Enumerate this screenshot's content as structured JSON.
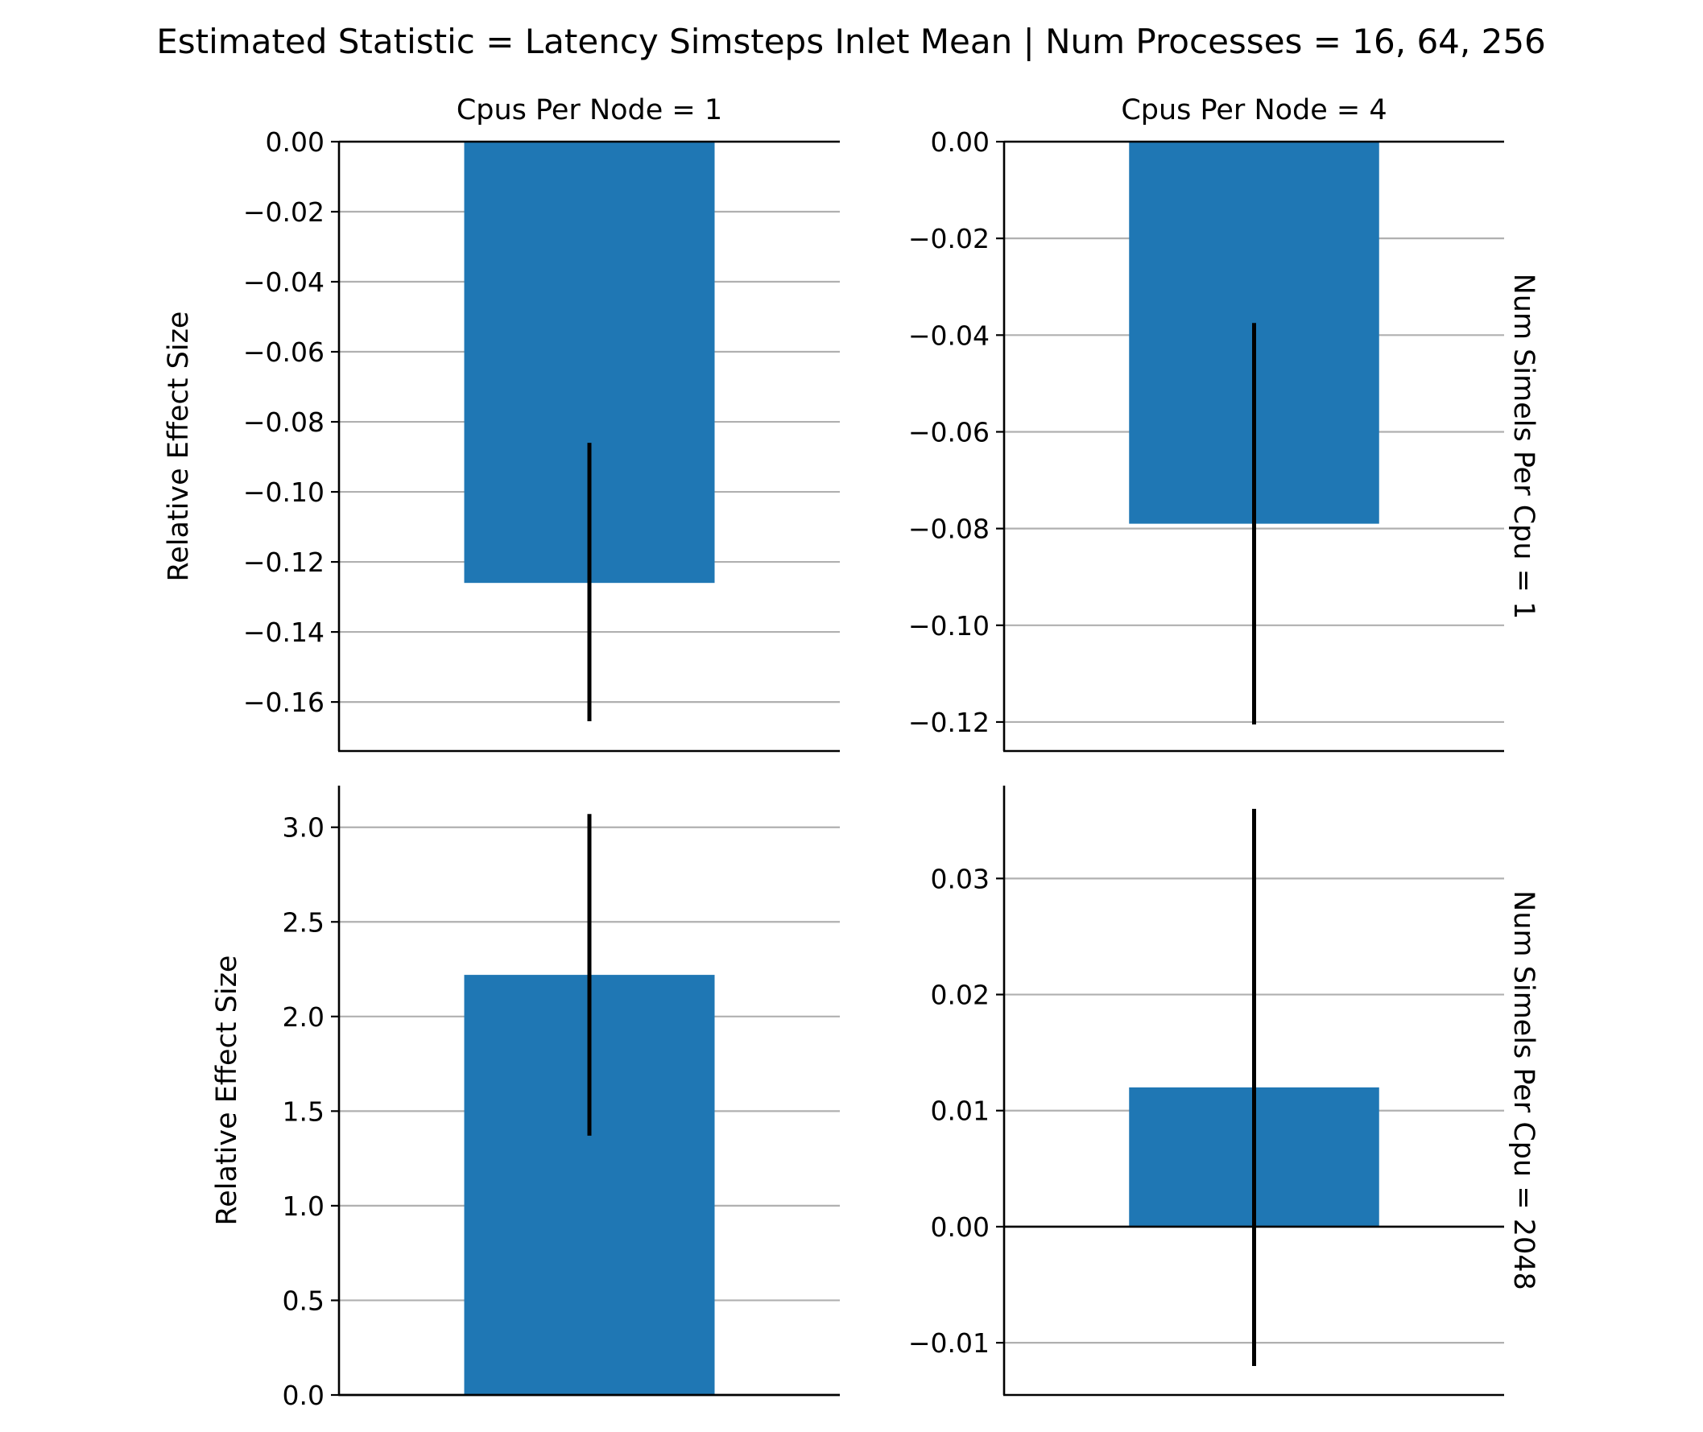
{
  "figure": {
    "suptitle": "Estimated Statistic = Latency Simsteps Inlet Mean | Num Processes = 16, 64, 256"
  },
  "colors": {
    "bar": "#1f77b4",
    "errorbar": "#000000",
    "grid": "#b0b0b0",
    "axis": "#000000"
  },
  "chart_data": [
    {
      "type": "bar",
      "panel": "top-left",
      "col_title": "Cpus Per Node = 1",
      "row_title": "",
      "ylabel": "Relative Effect Size",
      "categories": [
        ""
      ],
      "values": [
        -0.126
      ],
      "error_low": [
        -0.1655
      ],
      "error_high": [
        -0.086
      ],
      "ylim": [
        -0.174,
        0.0
      ],
      "yticks": [
        0.0,
        -0.02,
        -0.04,
        -0.06,
        -0.08,
        -0.1,
        -0.12,
        -0.14,
        -0.16
      ],
      "ytick_labels": [
        "0.00",
        "−0.02",
        "−0.04",
        "−0.06",
        "−0.08",
        "−0.10",
        "−0.12",
        "−0.14",
        "−0.16"
      ],
      "grid": "y"
    },
    {
      "type": "bar",
      "panel": "top-right",
      "col_title": "Cpus Per Node = 4",
      "row_title": "Num Simels Per Cpu = 1",
      "ylabel": "",
      "categories": [
        ""
      ],
      "values": [
        -0.079
      ],
      "error_low": [
        -0.1205
      ],
      "error_high": [
        -0.0375
      ],
      "ylim": [
        -0.126,
        0.0
      ],
      "yticks": [
        0.0,
        -0.02,
        -0.04,
        -0.06,
        -0.08,
        -0.1,
        -0.12
      ],
      "ytick_labels": [
        "0.00",
        "−0.02",
        "−0.04",
        "−0.06",
        "−0.08",
        "−0.10",
        "−0.12"
      ],
      "grid": "y"
    },
    {
      "type": "bar",
      "panel": "bottom-left",
      "col_title": "",
      "row_title": "",
      "ylabel": "Relative Effect Size",
      "categories": [
        ""
      ],
      "values": [
        2.22
      ],
      "error_low": [
        1.37
      ],
      "error_high": [
        3.07
      ],
      "ylim": [
        0.0,
        3.22
      ],
      "yticks": [
        0.0,
        0.5,
        1.0,
        1.5,
        2.0,
        2.5,
        3.0
      ],
      "ytick_labels": [
        "0.0",
        "0.5",
        "1.0",
        "1.5",
        "2.0",
        "2.5",
        "3.0"
      ],
      "grid": "y"
    },
    {
      "type": "bar",
      "panel": "bottom-right",
      "col_title": "",
      "row_title": "Num Simels Per Cpu = 2048",
      "ylabel": "",
      "categories": [
        ""
      ],
      "values": [
        0.012
      ],
      "error_low": [
        -0.012
      ],
      "error_high": [
        0.036
      ],
      "ylim": [
        -0.0145,
        0.038
      ],
      "yticks": [
        0.03,
        0.02,
        0.01,
        0.0,
        -0.01
      ],
      "ytick_labels": [
        "0.03",
        "0.02",
        "0.01",
        "0.00",
        "−0.01"
      ],
      "grid": "y"
    }
  ]
}
